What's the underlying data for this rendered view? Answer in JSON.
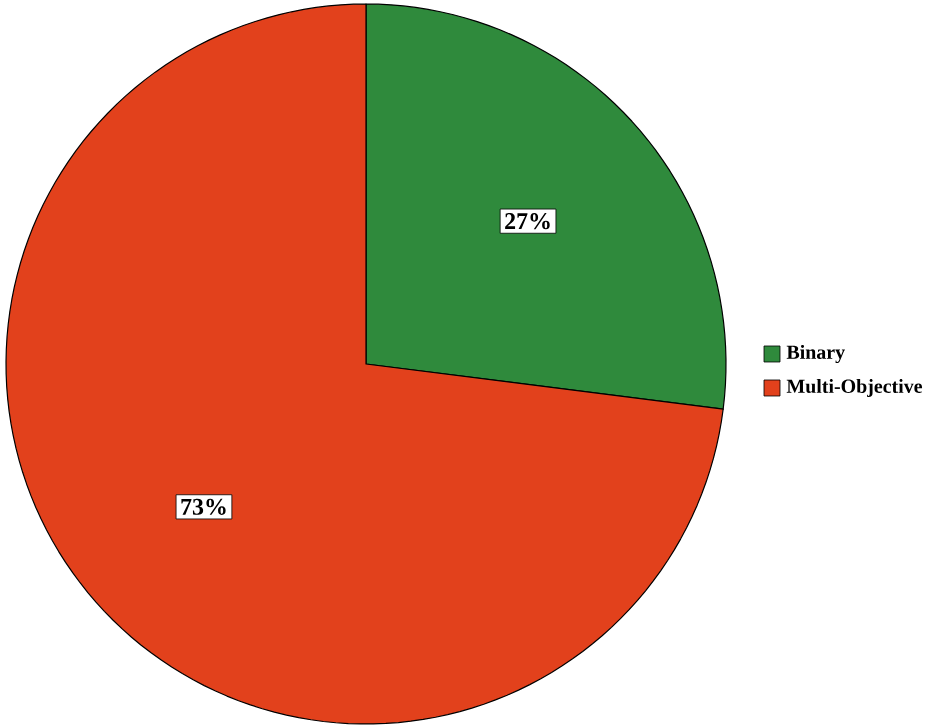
{
  "chart_data": {
    "type": "pie",
    "categories": [
      "Binary",
      "Multi-Objective"
    ],
    "values": [
      27,
      73
    ],
    "colors": [
      "#2f8a3c",
      "#e2411c"
    ],
    "value_labels": [
      "27%",
      "73%"
    ],
    "legend": "right"
  }
}
